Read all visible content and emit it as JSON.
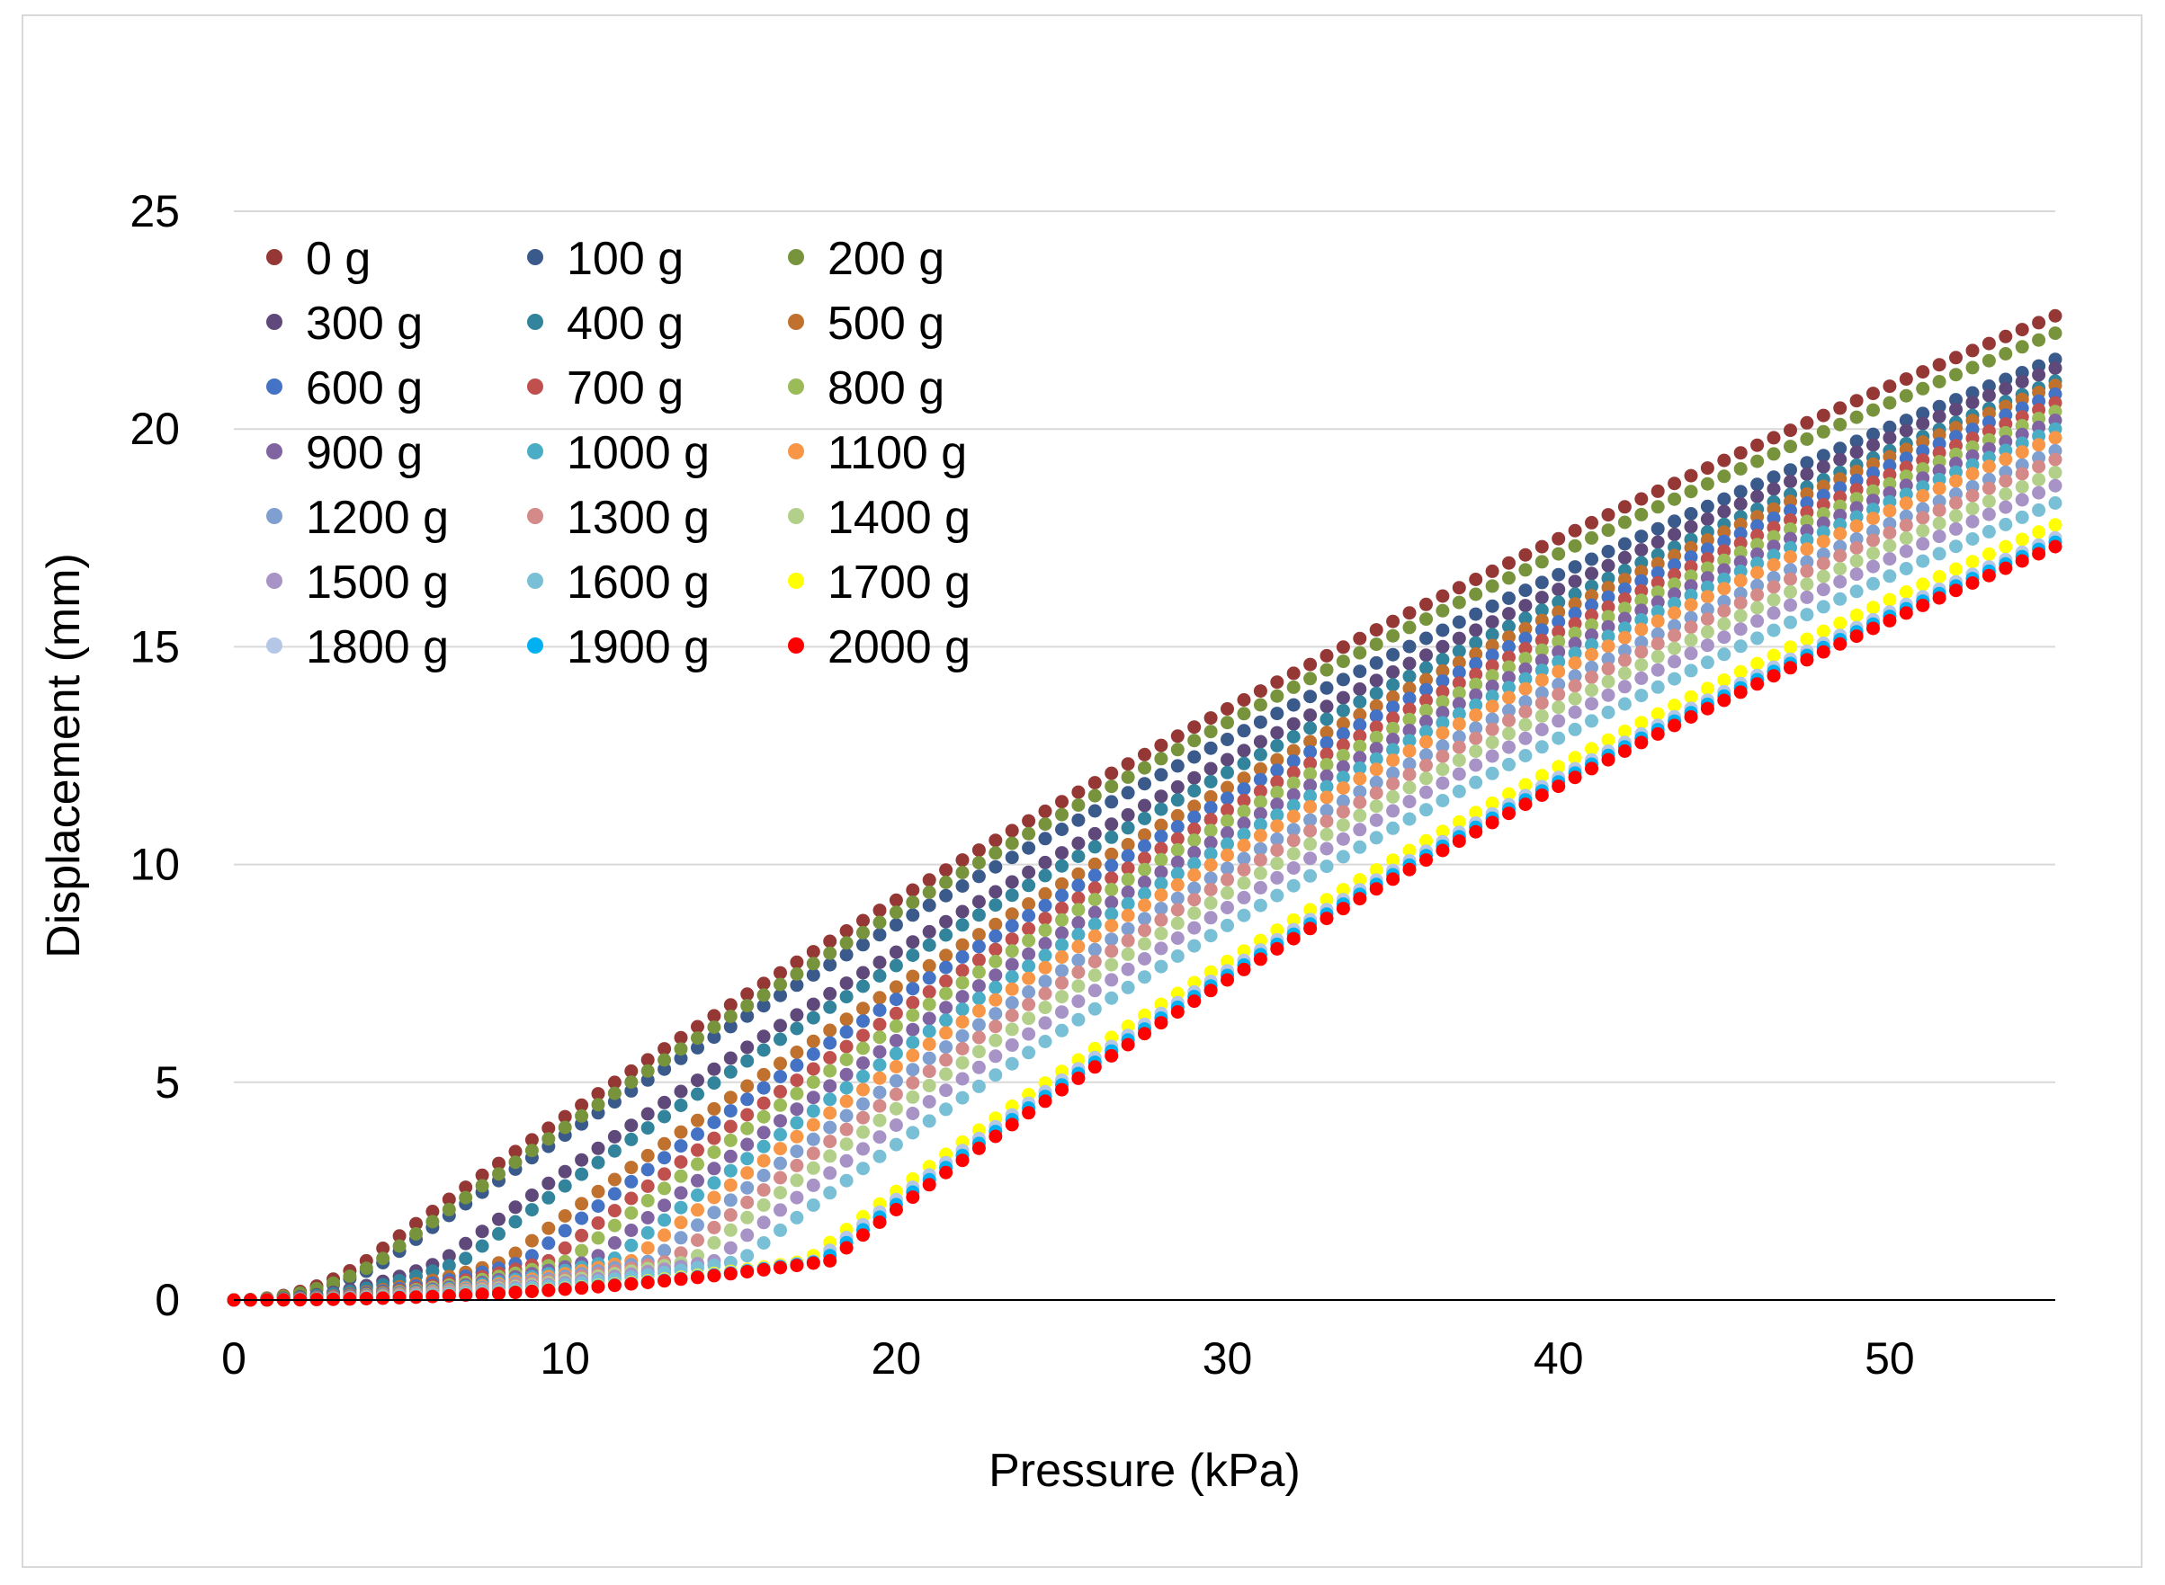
{
  "chart_data": {
    "type": "scatter",
    "title": "",
    "xlabel": "Pressure (kPa)",
    "ylabel": "Displacement (mm)",
    "xlim": [
      0,
      55
    ],
    "ylim": [
      0,
      25
    ],
    "xticks": [
      "0",
      "10",
      "20",
      "30",
      "40",
      "50"
    ],
    "yticks": [
      "0",
      "5",
      "10",
      "15",
      "20",
      "25"
    ],
    "grid": "horizontal",
    "legend_position": "top-left",
    "legend_columns": 3,
    "point_step_kPa": 0.5,
    "series": [
      {
        "name": "0 g",
        "color": "#953735",
        "onset": 4.0,
        "end": 22.6
      },
      {
        "name": "100 g",
        "color": "#3a5a8c",
        "onset": 4.6,
        "end": 21.6
      },
      {
        "name": "200 g",
        "color": "#77933c",
        "onset": 4.4,
        "end": 22.2
      },
      {
        "name": "300 g",
        "color": "#5f497a",
        "onset": 6.3,
        "end": 21.4
      },
      {
        "name": "400 g",
        "color": "#31849b",
        "onset": 6.9,
        "end": 21.1
      },
      {
        "name": "500 g",
        "color": "#c0712e",
        "onset": 8.2,
        "end": 21.0
      },
      {
        "name": "600 g",
        "color": "#4472c4",
        "onset": 8.8,
        "end": 20.8
      },
      {
        "name": "700 g",
        "color": "#c0504d",
        "onset": 9.5,
        "end": 20.6
      },
      {
        "name": "800 g",
        "color": "#9bbb59",
        "onset": 10.1,
        "end": 20.4
      },
      {
        "name": "900 g",
        "color": "#8064a2",
        "onset": 10.8,
        "end": 20.2
      },
      {
        "name": "1000 g",
        "color": "#4bacc6",
        "onset": 11.4,
        "end": 20.0
      },
      {
        "name": "1100 g",
        "color": "#f79646",
        "onset": 12.0,
        "end": 19.8
      },
      {
        "name": "1200 g",
        "color": "#7f9fd0",
        "onset": 12.6,
        "end": 19.5
      },
      {
        "name": "1300 g",
        "color": "#d48a88",
        "onset": 13.2,
        "end": 19.3
      },
      {
        "name": "1400 g",
        "color": "#b3d08a",
        "onset": 13.8,
        "end": 19.0
      },
      {
        "name": "1500 g",
        "color": "#a793c6",
        "onset": 14.5,
        "end": 18.7
      },
      {
        "name": "1600 g",
        "color": "#79c0d6",
        "onset": 15.3,
        "end": 18.3
      },
      {
        "name": "1700 g",
        "color": "#ffff00",
        "onset": 17.3,
        "end": 17.8
      },
      {
        "name": "1800 g",
        "color": "#b4c7e7",
        "onset": 17.6,
        "end": 17.5
      },
      {
        "name": "1900 g",
        "color": "#00b0f0",
        "onset": 17.8,
        "end": 17.4
      },
      {
        "name": "2000 g",
        "color": "#ff0000",
        "onset": 18.0,
        "end": 17.3
      }
    ]
  }
}
